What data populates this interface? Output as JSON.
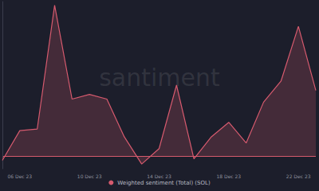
{
  "chart_data": {
    "type": "line",
    "annotations": [
      "santiment"
    ],
    "categories": [
      null,
      "06 Dec 23",
      null,
      null,
      null,
      "10 Dec 23",
      null,
      null,
      null,
      "14 Dec 23",
      null,
      null,
      null,
      "18 Dec 23",
      null,
      null,
      null,
      "22 Dec 23",
      null
    ],
    "series": [
      {
        "name": "Weighted sentiment (Total) (SOL)",
        "color": "#d65a6e",
        "values": [
          -0.13,
          0.83,
          0.88,
          4.88,
          1.85,
          2.0,
          1.85,
          0.63,
          -0.25,
          0.25,
          2.3,
          -0.08,
          0.63,
          1.1,
          0.43,
          1.75,
          2.43,
          4.2,
          2.13
        ]
      }
    ],
    "ylim": [
      -0.4,
      5
    ],
    "yticks": [
      0
    ],
    "grid": true,
    "tick_labels": "x",
    "legend": "bottom"
  }
}
